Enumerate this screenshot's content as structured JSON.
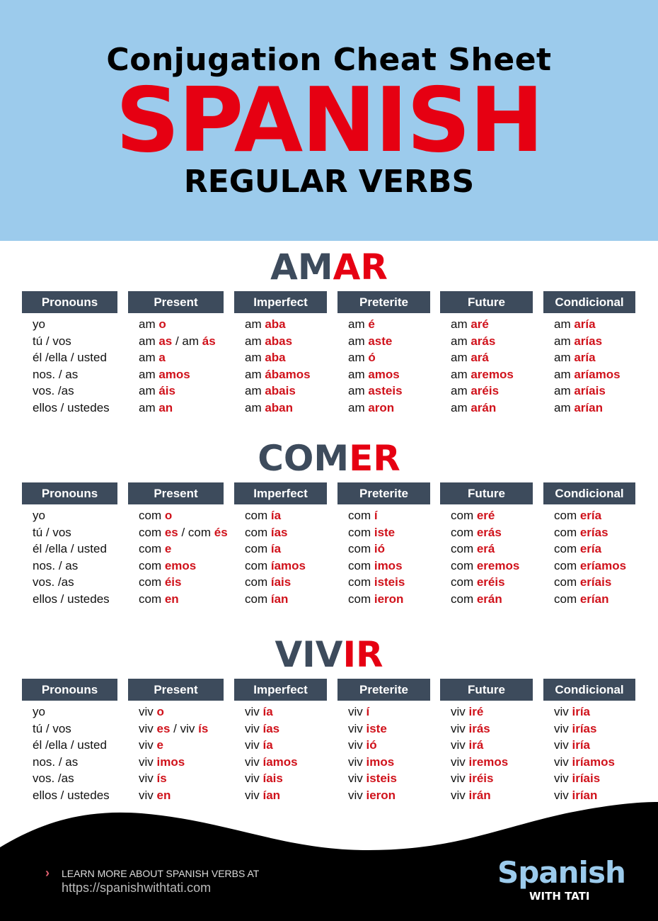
{
  "header": {
    "line1": "Conjugation Cheat Sheet",
    "line2": "SPANISH",
    "line3": "REGULAR VERBS"
  },
  "colors": {
    "accent": "#e60012",
    "header_bg": "#9ccbec",
    "table_header": "#3d4b5c"
  },
  "columns": [
    "Pronouns",
    "Present",
    "Imperfect",
    "Preterite",
    "Future",
    "Condicional"
  ],
  "pronouns": [
    "yo",
    "tú / vos",
    "él /ella / usted",
    "nos. / as",
    "vos. /as",
    "ellos / ustedes"
  ],
  "verbs": [
    {
      "stem_title": "AM",
      "ending_title": "AR",
      "cells": [
        [
          [
            "am ",
            "o"
          ],
          [
            "am ",
            "as",
            " / am ",
            "ás"
          ],
          [
            "am ",
            "a"
          ],
          [
            "am ",
            "amos"
          ],
          [
            "am ",
            "áis"
          ],
          [
            "am ",
            "an"
          ]
        ],
        [
          [
            "am ",
            "aba"
          ],
          [
            "am ",
            "abas"
          ],
          [
            "am ",
            "aba"
          ],
          [
            "am ",
            "ábamos"
          ],
          [
            "am ",
            "abais"
          ],
          [
            "am ",
            "aban"
          ]
        ],
        [
          [
            "am ",
            "é"
          ],
          [
            "am ",
            "aste"
          ],
          [
            "am ",
            "ó"
          ],
          [
            "am ",
            "amos"
          ],
          [
            "am ",
            "asteis"
          ],
          [
            "am ",
            "aron"
          ]
        ],
        [
          [
            "am ",
            "aré"
          ],
          [
            "am ",
            "arás"
          ],
          [
            "am ",
            "ará"
          ],
          [
            "am ",
            "aremos"
          ],
          [
            "am ",
            "aréis"
          ],
          [
            "am ",
            "arán"
          ]
        ],
        [
          [
            "am ",
            "aría"
          ],
          [
            "am ",
            "arías"
          ],
          [
            "am ",
            "aría"
          ],
          [
            "am ",
            "aríamos"
          ],
          [
            "am ",
            "aríais"
          ],
          [
            "am ",
            "arían"
          ]
        ]
      ]
    },
    {
      "stem_title": "COM",
      "ending_title": "ER",
      "cells": [
        [
          [
            "com ",
            "o"
          ],
          [
            "com ",
            "es",
            " / com ",
            "és"
          ],
          [
            "com ",
            "e"
          ],
          [
            "com ",
            "emos"
          ],
          [
            "com ",
            "éis"
          ],
          [
            "com ",
            "en"
          ]
        ],
        [
          [
            "com ",
            "ía"
          ],
          [
            "com ",
            "ías"
          ],
          [
            "com ",
            "ía"
          ],
          [
            "com ",
            "íamos"
          ],
          [
            "com ",
            "íais"
          ],
          [
            "com ",
            "ían"
          ]
        ],
        [
          [
            "com ",
            "í"
          ],
          [
            "com ",
            "iste"
          ],
          [
            "com ",
            "ió"
          ],
          [
            "com ",
            "imos"
          ],
          [
            "com ",
            "isteis"
          ],
          [
            "com ",
            "ieron"
          ]
        ],
        [
          [
            "com ",
            "eré"
          ],
          [
            "com ",
            "erás"
          ],
          [
            "com ",
            "erá"
          ],
          [
            "com ",
            "eremos"
          ],
          [
            "com ",
            "eréis"
          ],
          [
            "com ",
            "erán"
          ]
        ],
        [
          [
            "com ",
            "ería"
          ],
          [
            "com ",
            "erías"
          ],
          [
            "com ",
            "ería"
          ],
          [
            "com ",
            "eríamos"
          ],
          [
            "com ",
            "eríais"
          ],
          [
            "com ",
            "erían"
          ]
        ]
      ]
    },
    {
      "stem_title": "VIV",
      "ending_title": "IR",
      "cells": [
        [
          [
            "viv ",
            "o"
          ],
          [
            "viv ",
            "es",
            " / viv ",
            "ís"
          ],
          [
            "viv ",
            "e"
          ],
          [
            "viv ",
            "imos"
          ],
          [
            "viv ",
            "ís"
          ],
          [
            "viv ",
            "en"
          ]
        ],
        [
          [
            "viv ",
            "ía"
          ],
          [
            "viv ",
            "ías"
          ],
          [
            "viv ",
            "ía"
          ],
          [
            "viv ",
            "íamos"
          ],
          [
            "viv ",
            "íais"
          ],
          [
            "viv ",
            "ían"
          ]
        ],
        [
          [
            "viv ",
            "í"
          ],
          [
            "viv ",
            "iste"
          ],
          [
            "viv ",
            "ió"
          ],
          [
            "viv ",
            "imos"
          ],
          [
            "viv ",
            "isteis"
          ],
          [
            "viv ",
            "ieron"
          ]
        ],
        [
          [
            "viv ",
            "iré"
          ],
          [
            "viv ",
            "irás"
          ],
          [
            "viv ",
            "irá"
          ],
          [
            "viv ",
            "iremos"
          ],
          [
            "viv ",
            "iréis"
          ],
          [
            "viv ",
            "irán"
          ]
        ],
        [
          [
            "viv ",
            "iría"
          ],
          [
            "viv ",
            "irías"
          ],
          [
            "viv ",
            "iría"
          ],
          [
            "viv ",
            "iríamos"
          ],
          [
            "viv ",
            "iríais"
          ],
          [
            "viv ",
            "irían"
          ]
        ]
      ]
    }
  ],
  "footer": {
    "chevron_icon": "chevron-right-icon",
    "learn_more": "LEARN MORE ABOUT SPANISH VERBS AT",
    "url": "https://spanishwithtati.com",
    "logo_line1": "Spanish",
    "logo_line2": "WITH TATI"
  }
}
